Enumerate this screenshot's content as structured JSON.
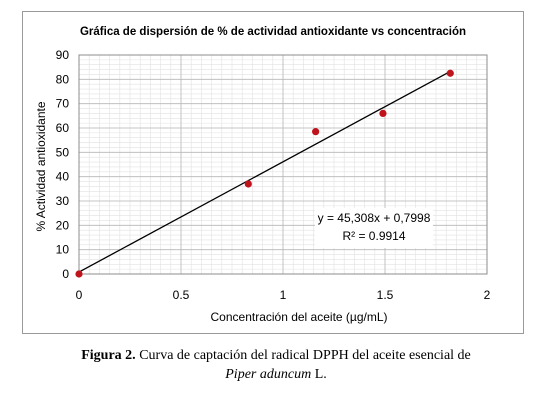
{
  "chart_data": {
    "type": "scatter",
    "title": "Gráfica de dispersión de % de actividad antioxidante vs  concentración",
    "xlabel": "Concentración del aceite (µg/mL)",
    "ylabel": "% Actividad antioxidante",
    "xlim": [
      0,
      2
    ],
    "ylim": [
      0,
      90
    ],
    "x_ticks": [
      "0",
      "0.5",
      "1",
      "1.5",
      "2"
    ],
    "y_ticks": [
      "0",
      "10",
      "20",
      "30",
      "40",
      "50",
      "60",
      "70",
      "80",
      "90"
    ],
    "grid": true,
    "legend": "none",
    "points": [
      {
        "x": 0,
        "y": 0
      },
      {
        "x": 0.83,
        "y": 37
      },
      {
        "x": 1.16,
        "y": 58.5
      },
      {
        "x": 1.49,
        "y": 66
      },
      {
        "x": 1.82,
        "y": 82.5
      }
    ],
    "trendline": {
      "slope": 45.308,
      "intercept": 0.7998,
      "x_range": [
        0,
        1.82
      ]
    },
    "annotation": {
      "equation": "y = 45,308x + 0,7998",
      "r2": "R² = 0.9914"
    },
    "colors": {
      "point": "#c0141c",
      "line": "#000000",
      "grid": "#c8c8c8"
    }
  },
  "caption": {
    "label": "Figura 2.",
    "text": " Curva de captación del radical DPPH del aceite esencial de ",
    "species": "Piper aduncum",
    "suffix": " L."
  }
}
